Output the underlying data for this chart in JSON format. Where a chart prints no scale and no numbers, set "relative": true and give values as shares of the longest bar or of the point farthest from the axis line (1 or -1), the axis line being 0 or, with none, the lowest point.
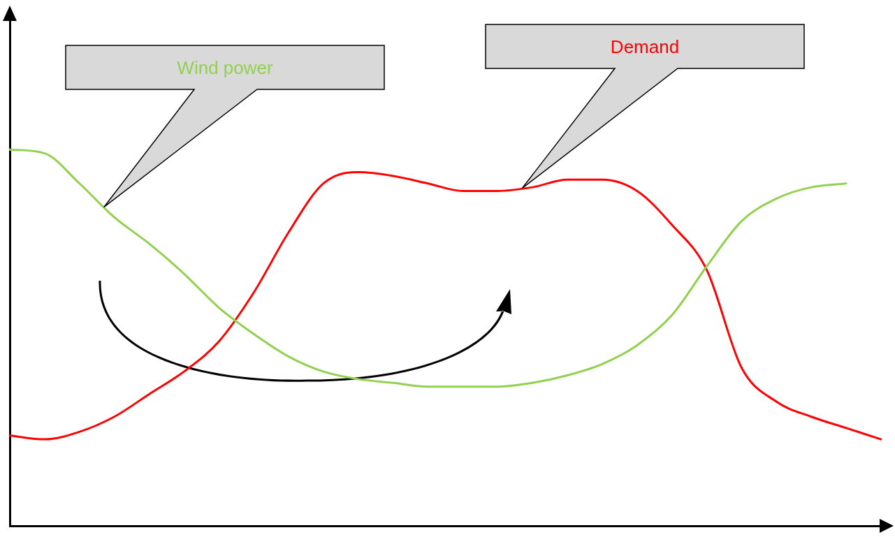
{
  "chart_data": {
    "type": "line",
    "relative": true,
    "categories": [
      null,
      null,
      null,
      null,
      null,
      null,
      null,
      null,
      null,
      null,
      null,
      null,
      null,
      null,
      null,
      null,
      null,
      null,
      null,
      null,
      null,
      null,
      null,
      null,
      null,
      null
    ],
    "series": [
      {
        "name": "Wind power",
        "color": "#92d050",
        "values": [
          1.0,
          0.99,
          0.91,
          0.82,
          0.75,
          0.67,
          0.58,
          0.51,
          0.45,
          0.41,
          0.39,
          0.38,
          0.37,
          0.37,
          0.37,
          0.38,
          0.4,
          0.43,
          0.48,
          0.56,
          0.69,
          0.81,
          0.87,
          0.9,
          0.91,
          null
        ]
      },
      {
        "name": "Demand",
        "color": "#ff0000",
        "values": [
          0.24,
          0.23,
          0.25,
          0.29,
          0.35,
          0.41,
          0.49,
          0.62,
          0.78,
          0.91,
          0.94,
          0.93,
          0.91,
          0.89,
          0.89,
          0.9,
          0.92,
          0.92,
          0.89,
          0.8,
          0.68,
          0.42,
          0.33,
          0.29,
          0.26,
          0.23
        ]
      }
    ],
    "marker": "none",
    "line_style": "solid",
    "grid": false,
    "legend": false
  }
}
